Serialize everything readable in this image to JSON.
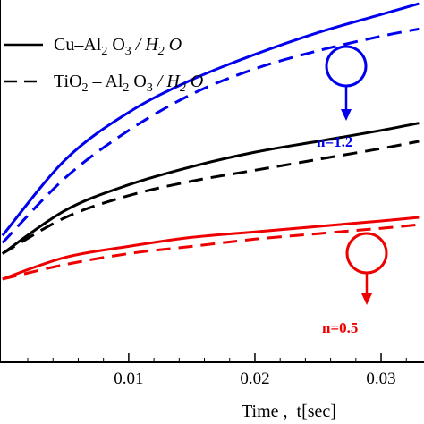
{
  "chart_data": {
    "type": "line",
    "title": "",
    "xlabel": "Time ,  t[sec]",
    "ylabel": "",
    "xlim": [
      -0.0002,
      0.0334
    ],
    "ylim": [
      0,
      1
    ],
    "x_ticks": [
      0.01,
      0.02,
      0.03
    ],
    "x_tick_labels": [
      "0.01",
      "0.02",
      "0.03"
    ],
    "grid": false,
    "legend_placement": "top-left",
    "legend": [
      {
        "label": "Cu–Al₂ O₃ / H₂ O",
        "style": "solid"
      },
      {
        "label": "TiO₂ – Al₂ O₃ / H₂ O",
        "style": "dashed"
      }
    ],
    "series": [
      {
        "group": "n=1.2",
        "style": "solid",
        "color": "#0000ee",
        "x": [
          0,
          0.005,
          0.01,
          0.015,
          0.02,
          0.025,
          0.03,
          0.033
        ],
        "y": [
          0.35,
          0.56,
          0.69,
          0.78,
          0.85,
          0.91,
          0.96,
          0.99
        ]
      },
      {
        "group": "n=1.2",
        "style": "dashed",
        "color": "#0000ee",
        "x": [
          0,
          0.005,
          0.01,
          0.015,
          0.02,
          0.025,
          0.03,
          0.033
        ],
        "y": [
          0.33,
          0.51,
          0.64,
          0.74,
          0.81,
          0.86,
          0.9,
          0.92
        ]
      },
      {
        "group": "",
        "style": "solid",
        "color": "#000000",
        "x": [
          0,
          0.005,
          0.01,
          0.015,
          0.02,
          0.025,
          0.03,
          0.033
        ],
        "y": [
          0.3,
          0.42,
          0.49,
          0.54,
          0.58,
          0.61,
          0.64,
          0.66
        ]
      },
      {
        "group": "",
        "style": "dashed",
        "color": "#000000",
        "x": [
          0,
          0.005,
          0.01,
          0.015,
          0.02,
          0.025,
          0.03,
          0.033
        ],
        "y": [
          0.3,
          0.4,
          0.46,
          0.5,
          0.53,
          0.56,
          0.59,
          0.61
        ]
      },
      {
        "group": "n=0.5",
        "style": "solid",
        "color": "#ee0000",
        "x": [
          0,
          0.005,
          0.01,
          0.015,
          0.02,
          0.025,
          0.03,
          0.033
        ],
        "y": [
          0.23,
          0.29,
          0.32,
          0.345,
          0.36,
          0.375,
          0.39,
          0.4
        ]
      },
      {
        "group": "n=0.5",
        "style": "dashed",
        "color": "#ee0000",
        "x": [
          0,
          0.005,
          0.01,
          0.015,
          0.02,
          0.025,
          0.03,
          0.033
        ],
        "y": [
          0.23,
          0.27,
          0.3,
          0.32,
          0.34,
          0.355,
          0.37,
          0.38
        ]
      }
    ],
    "annotations": [
      {
        "text": "n=1.2",
        "color": "#0000ee",
        "x": 0.027,
        "y": 0.94
      },
      {
        "text": "n=0.5",
        "color": "#ee0000",
        "x": 0.028,
        "y": 0.39
      }
    ]
  }
}
